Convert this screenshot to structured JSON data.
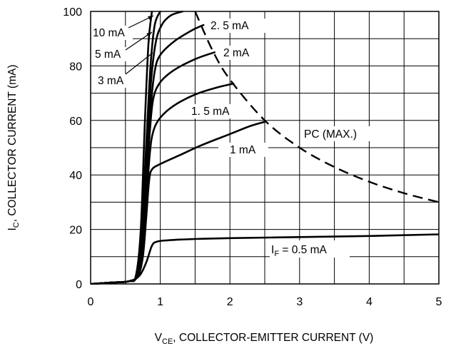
{
  "chart_data": {
    "type": "line",
    "title": "",
    "xlabel": "V",
    "xlabel_sub": "CE",
    "xlabel_rest": ", COLLECTOR-EMITTER CURRENT (V)",
    "ylabel": "I",
    "ylabel_sub": "C",
    "ylabel_rest": ", COLLECTOR CURRENT (mA)",
    "xlim": [
      0,
      5
    ],
    "ylim": [
      0,
      100
    ],
    "xticks": [
      "0",
      "1",
      "2",
      "3",
      "4",
      "5"
    ],
    "yticks": [
      "0",
      "20",
      "40",
      "60",
      "80",
      "100"
    ],
    "grid": true,
    "series": [
      {
        "name": "IF = 0.5 mA",
        "label_parts": [
          "I",
          "F",
          " = 0.5 mA"
        ],
        "points": [
          [
            0,
            0
          ],
          [
            0.3,
            0.5
          ],
          [
            0.55,
            1
          ],
          [
            0.7,
            3
          ],
          [
            0.8,
            8
          ],
          [
            0.88,
            14
          ],
          [
            0.95,
            15.5
          ],
          [
            1.1,
            16
          ],
          [
            1.5,
            16.5
          ],
          [
            2,
            16.8
          ],
          [
            3,
            17.2
          ],
          [
            4,
            17.6
          ],
          [
            5,
            18.2
          ]
        ]
      },
      {
        "name": "1 mA",
        "points": [
          [
            0,
            0
          ],
          [
            0.3,
            0.5
          ],
          [
            0.55,
            1
          ],
          [
            0.68,
            3
          ],
          [
            0.75,
            10
          ],
          [
            0.8,
            25
          ],
          [
            0.84,
            38
          ],
          [
            0.88,
            42
          ],
          [
            1.0,
            44
          ],
          [
            1.3,
            47.5
          ],
          [
            1.6,
            51
          ],
          [
            2.0,
            55
          ],
          [
            2.3,
            58
          ],
          [
            2.5,
            59.5
          ]
        ]
      },
      {
        "name": "1.5 mA",
        "points": [
          [
            0,
            0
          ],
          [
            0.3,
            0.5
          ],
          [
            0.55,
            1
          ],
          [
            0.68,
            3
          ],
          [
            0.75,
            12
          ],
          [
            0.8,
            30
          ],
          [
            0.85,
            48
          ],
          [
            0.9,
            56
          ],
          [
            1.0,
            61
          ],
          [
            1.2,
            65.5
          ],
          [
            1.5,
            69.5
          ],
          [
            1.8,
            72
          ],
          [
            2.05,
            73.5
          ]
        ]
      },
      {
        "name": "2 mA",
        "points": [
          [
            0,
            0
          ],
          [
            0.3,
            0.5
          ],
          [
            0.55,
            1
          ],
          [
            0.67,
            3
          ],
          [
            0.74,
            14
          ],
          [
            0.8,
            36
          ],
          [
            0.85,
            56
          ],
          [
            0.9,
            68
          ],
          [
            1.0,
            74
          ],
          [
            1.2,
            78.5
          ],
          [
            1.5,
            82.5
          ],
          [
            1.78,
            85
          ]
        ]
      },
      {
        "name": "2.5 mA",
        "points": [
          [
            0,
            0
          ],
          [
            0.3,
            0.5
          ],
          [
            0.55,
            1
          ],
          [
            0.67,
            3
          ],
          [
            0.74,
            15
          ],
          [
            0.8,
            40
          ],
          [
            0.86,
            64
          ],
          [
            0.92,
            78
          ],
          [
            1.0,
            84
          ],
          [
            1.2,
            89
          ],
          [
            1.45,
            93
          ],
          [
            1.62,
            95
          ]
        ]
      },
      {
        "name": "3 mA",
        "points": [
          [
            0,
            0
          ],
          [
            0.3,
            0.5
          ],
          [
            0.55,
            1
          ],
          [
            0.66,
            3
          ],
          [
            0.73,
            16
          ],
          [
            0.8,
            44
          ],
          [
            0.86,
            72
          ],
          [
            0.93,
            88
          ],
          [
            1.02,
            95
          ],
          [
            1.15,
            98.5
          ],
          [
            1.32,
            100
          ]
        ]
      },
      {
        "name": "5 mA",
        "points": [
          [
            0,
            0
          ],
          [
            0.3,
            0.5
          ],
          [
            0.55,
            1
          ],
          [
            0.66,
            3
          ],
          [
            0.73,
            18
          ],
          [
            0.8,
            52
          ],
          [
            0.86,
            80
          ],
          [
            0.92,
            95
          ],
          [
            1.0,
            100
          ]
        ]
      },
      {
        "name": "10 mA",
        "points": [
          [
            0,
            0
          ],
          [
            0.3,
            0.5
          ],
          [
            0.55,
            1
          ],
          [
            0.65,
            3
          ],
          [
            0.72,
            20
          ],
          [
            0.78,
            60
          ],
          [
            0.83,
            88
          ],
          [
            0.88,
            100
          ]
        ]
      }
    ],
    "pc_max": {
      "name": "PC (MAX.)",
      "points": [
        [
          1.5,
          100
        ],
        [
          1.75,
          85.7
        ],
        [
          2.0,
          75
        ],
        [
          2.5,
          60
        ],
        [
          3.0,
          50
        ],
        [
          3.5,
          42.9
        ],
        [
          4.0,
          37.5
        ],
        [
          4.5,
          33.3
        ],
        [
          5.0,
          30
        ]
      ]
    },
    "curve_labels": [
      "10 mA",
      "5 mA",
      "3 mA",
      "2. 5 mA",
      "2 mA",
      "1. 5 mA",
      "1 mA",
      "PC (MAX.)"
    ]
  }
}
